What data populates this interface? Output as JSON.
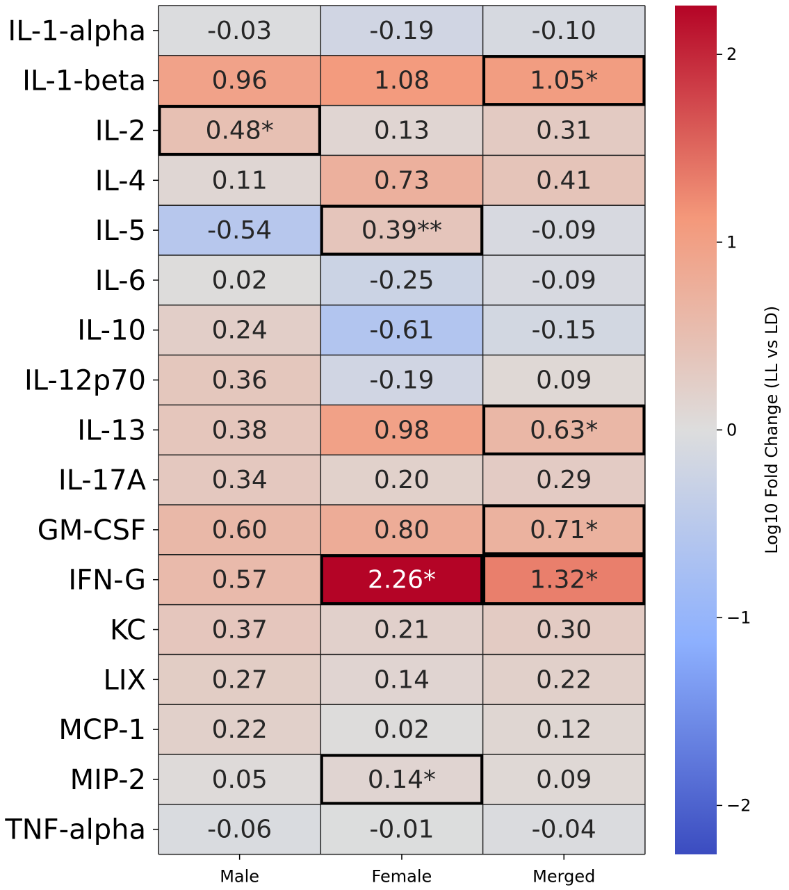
{
  "chart_data": {
    "type": "heatmap",
    "rows": [
      "IL-1-alpha",
      "IL-1-beta",
      "IL-2",
      "IL-4",
      "IL-5",
      "IL-6",
      "IL-10",
      "IL-12p70",
      "IL-13",
      "IL-17A",
      "GM-CSF",
      "IFN-G",
      "KC",
      "LIX",
      "MCP-1",
      "MIP-2",
      "TNF-alpha"
    ],
    "columns": [
      "Male",
      "Female",
      "Merged"
    ],
    "values": [
      [
        -0.03,
        -0.19,
        -0.1
      ],
      [
        0.96,
        1.08,
        1.05
      ],
      [
        0.48,
        0.13,
        0.31
      ],
      [
        0.11,
        0.73,
        0.41
      ],
      [
        -0.54,
        0.39,
        -0.09
      ],
      [
        0.02,
        -0.25,
        -0.09
      ],
      [
        0.24,
        -0.61,
        -0.15
      ],
      [
        0.36,
        -0.19,
        0.09
      ],
      [
        0.38,
        0.98,
        0.63
      ],
      [
        0.34,
        0.2,
        0.29
      ],
      [
        0.6,
        0.8,
        0.71
      ],
      [
        0.57,
        2.26,
        1.32
      ],
      [
        0.37,
        0.21,
        0.3
      ],
      [
        0.27,
        0.14,
        0.22
      ],
      [
        0.22,
        0.02,
        0.12
      ],
      [
        0.05,
        0.14,
        0.09
      ],
      [
        -0.06,
        -0.01,
        -0.04
      ]
    ],
    "annotations": [
      [
        "-0.03",
        "-0.19",
        "-0.10"
      ],
      [
        "0.96",
        "1.08",
        "1.05*"
      ],
      [
        "0.48*",
        "0.13",
        "0.31"
      ],
      [
        "0.11",
        "0.73",
        "0.41"
      ],
      [
        "-0.54",
        "0.39**",
        "-0.09"
      ],
      [
        "0.02",
        "-0.25",
        "-0.09"
      ],
      [
        "0.24",
        "-0.61",
        "-0.15"
      ],
      [
        "0.36",
        "-0.19",
        "0.09"
      ],
      [
        "0.38",
        "0.98",
        "0.63*"
      ],
      [
        "0.34",
        "0.20",
        "0.29"
      ],
      [
        "0.60",
        "0.80",
        "0.71*"
      ],
      [
        "0.57",
        "2.26*",
        "1.32*"
      ],
      [
        "0.37",
        "0.21",
        "0.30"
      ],
      [
        "0.27",
        "0.14",
        "0.22"
      ],
      [
        "0.22",
        "0.02",
        "0.12"
      ],
      [
        "0.05",
        "0.14*",
        "0.09"
      ],
      [
        "-0.06",
        "-0.01",
        "-0.04"
      ]
    ],
    "highlighted_cells": [
      [
        1,
        2
      ],
      [
        2,
        0
      ],
      [
        4,
        1
      ],
      [
        8,
        2
      ],
      [
        10,
        2
      ],
      [
        11,
        1
      ],
      [
        11,
        2
      ],
      [
        15,
        1
      ]
    ],
    "colormap": "coolwarm",
    "vmin": -2.26,
    "vmax": 2.26,
    "colorbar": {
      "label": "Log10 Fold Change (LL vs LD)",
      "ticks": [
        2,
        1,
        0,
        -1,
        -2
      ],
      "tick_labels": [
        "2",
        "1",
        "0",
        "−1",
        "−2"
      ]
    }
  }
}
